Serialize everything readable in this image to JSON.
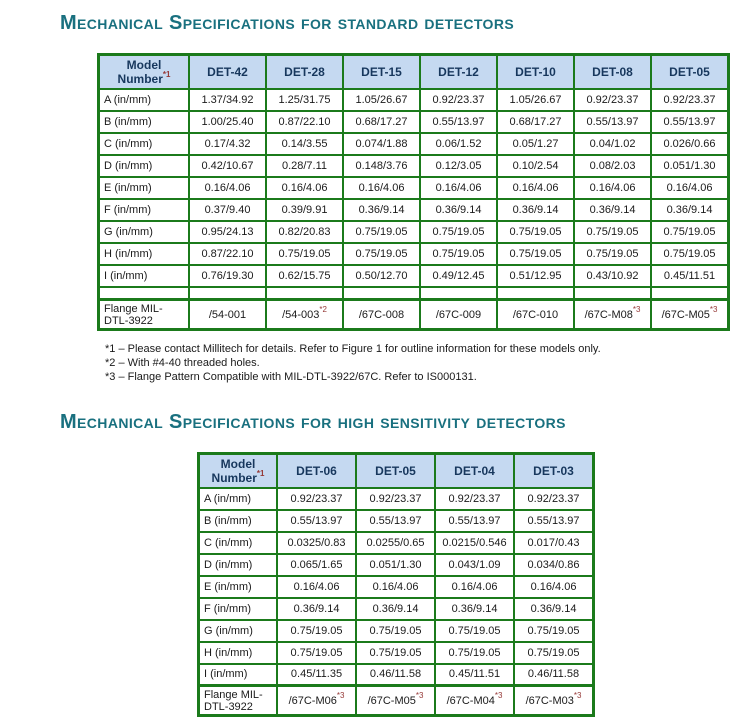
{
  "colors": {
    "title_teal": "#19707F",
    "table_border_green": "#1B7A1B",
    "header_bg_blue": "#C5D9F1",
    "header_text_navy": "#17375D",
    "superscript_red": "#953735"
  },
  "sections": [
    {
      "title": "Mechanical Specifications for standard detectors",
      "table": {
        "header": {
          "label": "Model Number",
          "label_sup": "*1",
          "columns": [
            "DET-42",
            "DET-28",
            "DET-15",
            "DET-12",
            "DET-10",
            "DET-08",
            "DET-05"
          ]
        },
        "rows": [
          {
            "label": "A (in/mm)",
            "values": [
              "1.37/34.92",
              "1.25/31.75",
              "1.05/26.67",
              "0.92/23.37",
              "1.05/26.67",
              "0.92/23.37",
              "0.92/23.37"
            ]
          },
          {
            "label": "B (in/mm)",
            "values": [
              "1.00/25.40",
              "0.87/22.10",
              "0.68/17.27",
              "0.55/13.97",
              "0.68/17.27",
              "0.55/13.97",
              "0.55/13.97"
            ]
          },
          {
            "label": "C (in/mm)",
            "values": [
              "0.17/4.32",
              "0.14/3.55",
              "0.074/1.88",
              "0.06/1.52",
              "0.05/1.27",
              "0.04/1.02",
              "0.026/0.66"
            ]
          },
          {
            "label": "D (in/mm)",
            "values": [
              "0.42/10.67",
              "0.28/7.11",
              "0.148/3.76",
              "0.12/3.05",
              "0.10/2.54",
              "0.08/2.03",
              "0.051/1.30"
            ]
          },
          {
            "label": "E (in/mm)",
            "values": [
              "0.16/4.06",
              "0.16/4.06",
              "0.16/4.06",
              "0.16/4.06",
              "0.16/4.06",
              "0.16/4.06",
              "0.16/4.06"
            ]
          },
          {
            "label": "F (in/mm)",
            "values": [
              "0.37/9.40",
              "0.39/9.91",
              "0.36/9.14",
              "0.36/9.14",
              "0.36/9.14",
              "0.36/9.14",
              "0.36/9.14"
            ]
          },
          {
            "label": "G (in/mm)",
            "values": [
              "0.95/24.13",
              "0.82/20.83",
              "0.75/19.05",
              "0.75/19.05",
              "0.75/19.05",
              "0.75/19.05",
              "0.75/19.05"
            ]
          },
          {
            "label": "H (in/mm)",
            "values": [
              "0.87/22.10",
              "0.75/19.05",
              "0.75/19.05",
              "0.75/19.05",
              "0.75/19.05",
              "0.75/19.05",
              "0.75/19.05"
            ]
          },
          {
            "label": "I (in/mm)",
            "values": [
              "0.76/19.30",
              "0.62/15.75",
              "0.50/12.70",
              "0.49/12.45",
              "0.51/12.95",
              "0.43/10.92",
              "0.45/11.51"
            ]
          },
          {
            "label": "",
            "values": [
              "",
              "",
              "",
              "",
              "",
              "",
              ""
            ]
          },
          {
            "label": "Flange MIL-DTL-3922",
            "values": [
              {
                "text": "/54-001"
              },
              {
                "text": "/54-003",
                "sup": "*2"
              },
              {
                "text": "/67C-008"
              },
              {
                "text": "/67C-009"
              },
              {
                "text": "/67C-010"
              },
              {
                "text": "/67C-M08",
                "sup": "*3"
              },
              {
                "text": "/67C-M05",
                "sup": "*3"
              }
            ]
          }
        ]
      },
      "footnotes": [
        "*1 – Please contact Millitech for details.  Refer to Figure 1 for outline information for these models only.",
        "*2 – With #4-40 threaded holes.",
        "*3 – Flange Pattern Compatible with MIL-DTL-3922/67C. Refer to IS000131."
      ]
    },
    {
      "title": "Mechanical Specifications for high sensitivity detectors",
      "table": {
        "header": {
          "label": "Model Number",
          "label_sup": "*1",
          "columns": [
            "DET-06",
            "DET-05",
            "DET-04",
            "DET-03"
          ]
        },
        "rows": [
          {
            "label": "A (in/mm)",
            "values": [
              "0.92/23.37",
              "0.92/23.37",
              "0.92/23.37",
              "0.92/23.37"
            ]
          },
          {
            "label": "B (in/mm)",
            "values": [
              "0.55/13.97",
              "0.55/13.97",
              "0.55/13.97",
              "0.55/13.97"
            ]
          },
          {
            "label": "C (in/mm)",
            "values": [
              "0.0325/0.83",
              "0.0255/0.65",
              "0.0215/0.546",
              "0.017/0.43"
            ]
          },
          {
            "label": "D (in/mm)",
            "values": [
              "0.065/1.65",
              "0.051/1.30",
              "0.043/1.09",
              "0.034/0.86"
            ]
          },
          {
            "label": "E (in/mm)",
            "values": [
              "0.16/4.06",
              "0.16/4.06",
              "0.16/4.06",
              "0.16/4.06"
            ]
          },
          {
            "label": "F (in/mm)",
            "values": [
              "0.36/9.14",
              "0.36/9.14",
              "0.36/9.14",
              "0.36/9.14"
            ]
          },
          {
            "label": "G (in/mm)",
            "values": [
              "0.75/19.05",
              "0.75/19.05",
              "0.75/19.05",
              "0.75/19.05"
            ]
          },
          {
            "label": "H (in/mm)",
            "values": [
              "0.75/19.05",
              "0.75/19.05",
              "0.75/19.05",
              "0.75/19.05"
            ]
          },
          {
            "label": "I (in/mm)",
            "values": [
              "0.45/11.35",
              "0.46/11.58",
              "0.45/11.51",
              "0.46/11.58"
            ]
          },
          {
            "label": "Flange MIL-DTL-3922",
            "values": [
              {
                "text": "/67C-M06",
                "sup": "*3"
              },
              {
                "text": "/67C-M05",
                "sup": "*3"
              },
              {
                "text": "/67C-M04",
                "sup": "*3"
              },
              {
                "text": "/67C-M03",
                "sup": "*3"
              }
            ]
          }
        ]
      }
    }
  ]
}
